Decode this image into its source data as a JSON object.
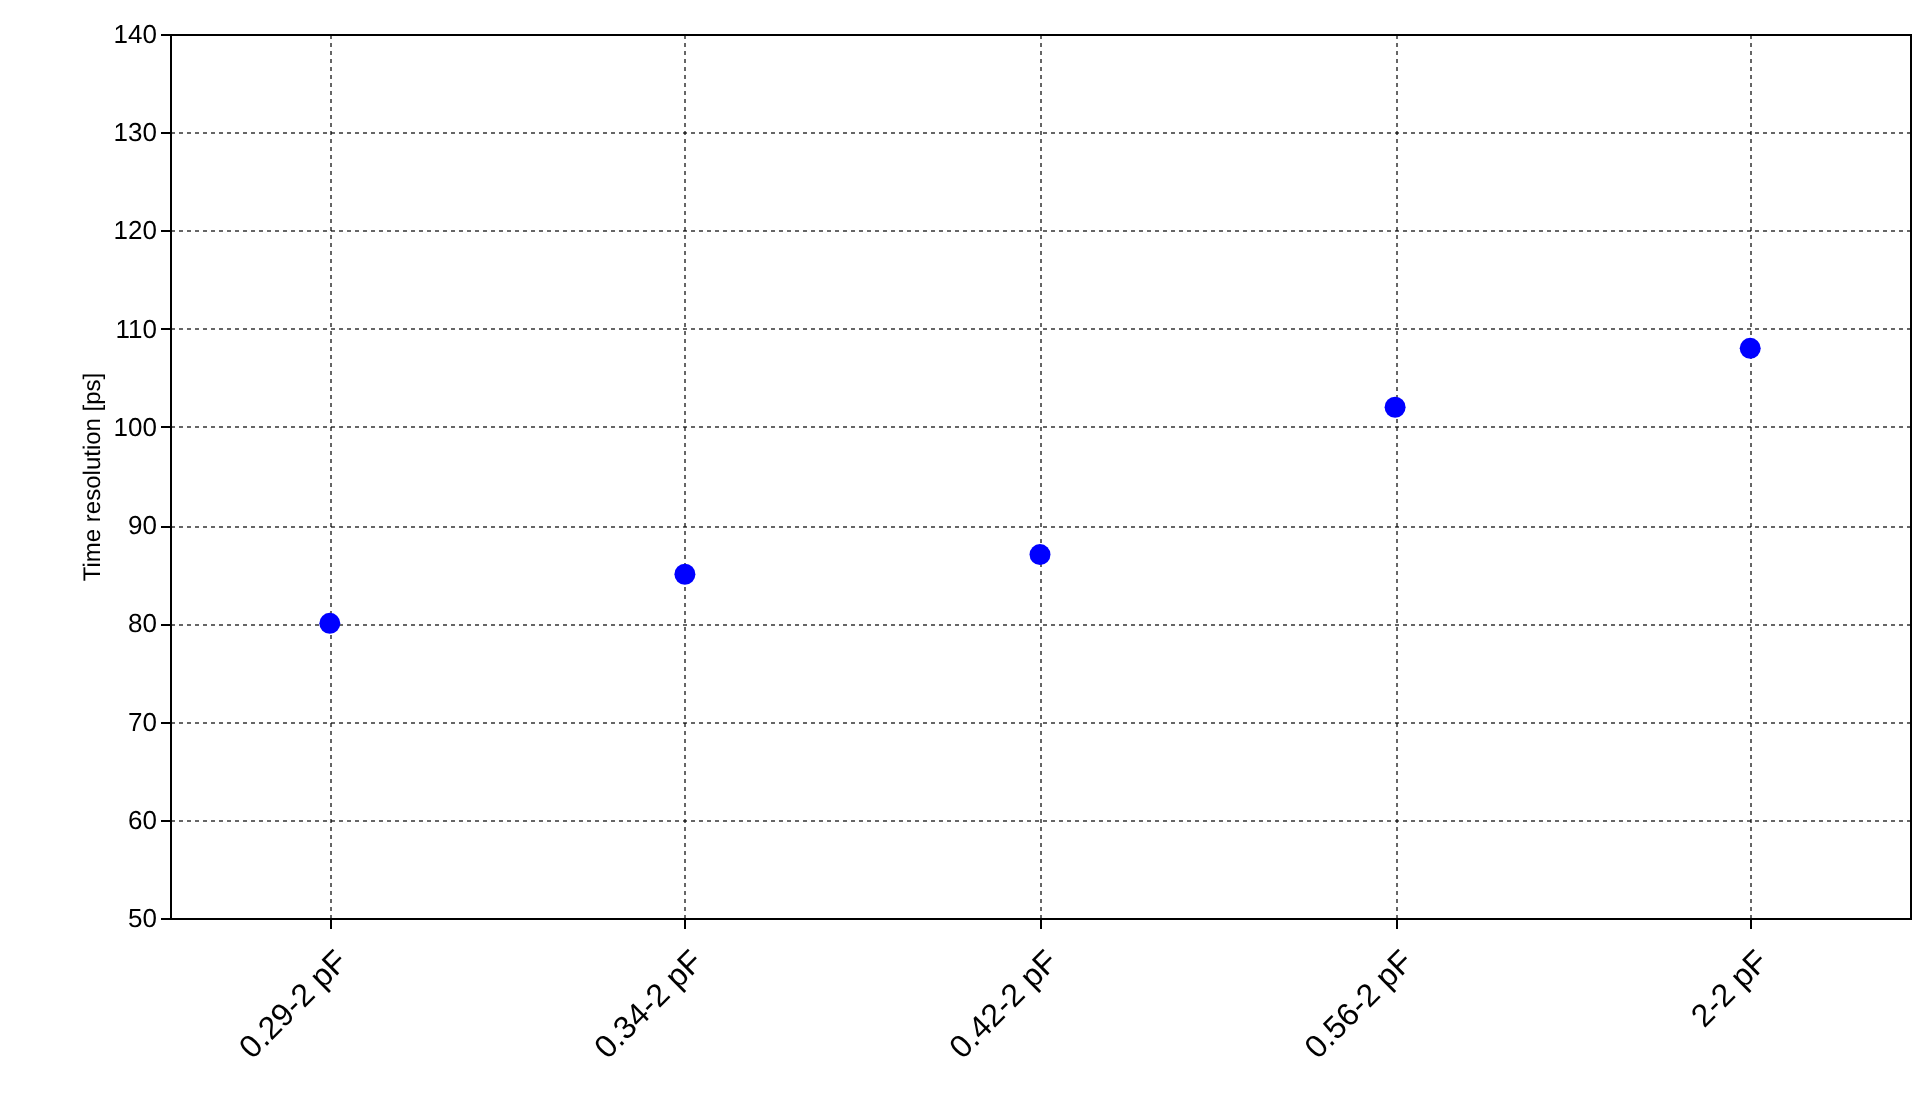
{
  "chart_data": {
    "type": "scatter",
    "ylabel": "Time resolution [ps]",
    "categories": [
      "0.29-2 pF",
      "0.34-2 pF",
      "0.42-2 pF",
      "0.56-2 pF",
      "2-2 pF"
    ],
    "series": [
      {
        "color": "#0000ff",
        "values": [
          80,
          85,
          87,
          102,
          108
        ]
      }
    ],
    "ylim": [
      50,
      140
    ],
    "yticks": [
      50,
      60,
      70,
      80,
      90,
      100,
      110,
      120,
      130,
      140
    ],
    "grid": true,
    "marker": "circle"
  }
}
